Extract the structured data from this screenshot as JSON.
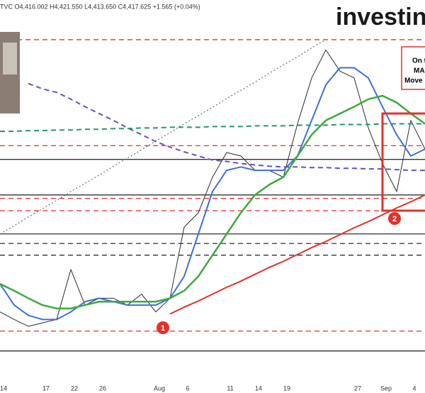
{
  "header": {
    "quote": "TVC O4,416.002 H4,421.550 L4,413.650 C4,417.625 +1.565 (+0.04%)",
    "logo": "investing"
  },
  "note_lines": [
    "On t",
    "MA",
    "Move"
  ],
  "markers": [
    "1",
    "2"
  ],
  "chart_data": {
    "type": "line",
    "ylim": [
      4060,
      4620
    ],
    "categories": [
      "14",
      null,
      null,
      "17",
      null,
      "22",
      null,
      "26",
      null,
      null,
      null,
      "Aug",
      null,
      "6",
      null,
      null,
      "11",
      null,
      "14",
      null,
      "19",
      null,
      null,
      null,
      null,
      "27",
      null,
      "Sep",
      null,
      "4",
      null
    ],
    "series": [
      {
        "color": "#2b2b2b",
        "style": "solid",
        "width": 1,
        "values": [
          4164,
          4153,
          4143,
          4148,
          4153,
          4226,
          4174,
          4184,
          4184,
          4174,
          4190,
          4164,
          4184,
          4288,
          4309,
          4361,
          4397,
          4392,
          4371,
          4371,
          4361,
          4439,
          4506,
          4547,
          4516,
          4506,
          4433,
          4381,
          4340,
          4444,
          4402
        ]
      },
      {
        "color": "#3f6fd8",
        "style": "solid",
        "width": 2,
        "values": [
          4205,
          4174,
          4159,
          4153,
          4153,
          4164,
          4179,
          4184,
          4179,
          4174,
          4174,
          4174,
          4184,
          4216,
          4278,
          4340,
          4371,
          4376,
          4371,
          4371,
          4371,
          4392,
          4444,
          4496,
          4521,
          4521,
          4506,
          4464,
          4423,
          4392,
          4402
        ]
      },
      {
        "color": "#3caa3c",
        "style": "solid",
        "width": 2.5,
        "values": [
          4205,
          4195,
          4184,
          4174,
          4169,
          4169,
          4174,
          4179,
          4179,
          4179,
          4179,
          4179,
          4184,
          4195,
          4216,
          4247,
          4278,
          4309,
          4335,
          4350,
          4361,
          4392,
          4423,
          4444,
          4454,
          4464,
          4475,
          4480,
          4470,
          4454,
          4439
        ]
      },
      {
        "color": "#6a4fc4",
        "style": "dashed",
        "width": 2,
        "values": [
          null,
          null,
          4498,
          4490,
          4485,
          4475,
          4464,
          4454,
          4444,
          4433,
          4423,
          4413,
          4405,
          4398,
          4392,
          4386,
          4384,
          4381,
          4379,
          4377,
          4376,
          4376,
          4375,
          4375,
          4374,
          4374,
          4373,
          4373,
          4372,
          4371,
          4371
        ]
      },
      {
        "color": "#1f9a6a",
        "style": "dashed",
        "width": 2,
        "values": [
          4428,
          4428,
          4429,
          4429,
          4430,
          4430,
          4431,
          4431,
          4432,
          4432,
          4433,
          4433,
          4434,
          4434,
          4434,
          4435,
          4435,
          4435,
          4436,
          4436,
          4436,
          4437,
          4437,
          4437,
          4438,
          4438,
          4438,
          4439,
          4439,
          4439,
          4439
        ]
      },
      {
        "color": "#e0322b",
        "style": "solid",
        "width": 2,
        "values": [
          null,
          null,
          null,
          null,
          null,
          null,
          null,
          null,
          null,
          null,
          null,
          null,
          4161,
          4171,
          4180,
          4190,
          4200,
          4209,
          4219,
          4229,
          4238,
          4248,
          4258,
          4267,
          4277,
          4287,
          4296,
          4306,
          4316,
          4325,
          4335
        ]
      },
      {
        "color": "#555555",
        "style": "dotted",
        "width": 1,
        "values": [
          4278,
          4290,
          4303,
          4315,
          4327,
          4340,
          4352,
          4364,
          4377,
          4389,
          4401,
          4414,
          4426,
          4439,
          4451,
          4463,
          4476,
          4488,
          4500,
          4513,
          4525,
          4537,
          4550,
          4562,
          null,
          null,
          null,
          null,
          null,
          null,
          null
        ]
      }
    ],
    "levels": [
      {
        "value": 4562,
        "color": "#e0322b",
        "style": "dashed"
      },
      {
        "value": 4407,
        "color": "#e0322b",
        "style": "dashed"
      },
      {
        "value": 4330,
        "color": "#e0322b",
        "style": "dashed"
      },
      {
        "value": 4312,
        "color": "#e0322b",
        "style": "dashed"
      },
      {
        "value": 4136,
        "color": "#e0322b",
        "style": "dashed"
      },
      {
        "value": 4387,
        "color": "#333333",
        "style": "solid"
      },
      {
        "value": 4335,
        "color": "#333333",
        "style": "solid"
      },
      {
        "value": 4278,
        "color": "#333333",
        "style": "solid"
      },
      {
        "value": 4107,
        "color": "#333333",
        "style": "solid"
      },
      {
        "value": 4264,
        "color": "#333333",
        "style": "dashed"
      },
      {
        "value": 4247,
        "color": "#333333",
        "style": "dashed"
      }
    ]
  }
}
